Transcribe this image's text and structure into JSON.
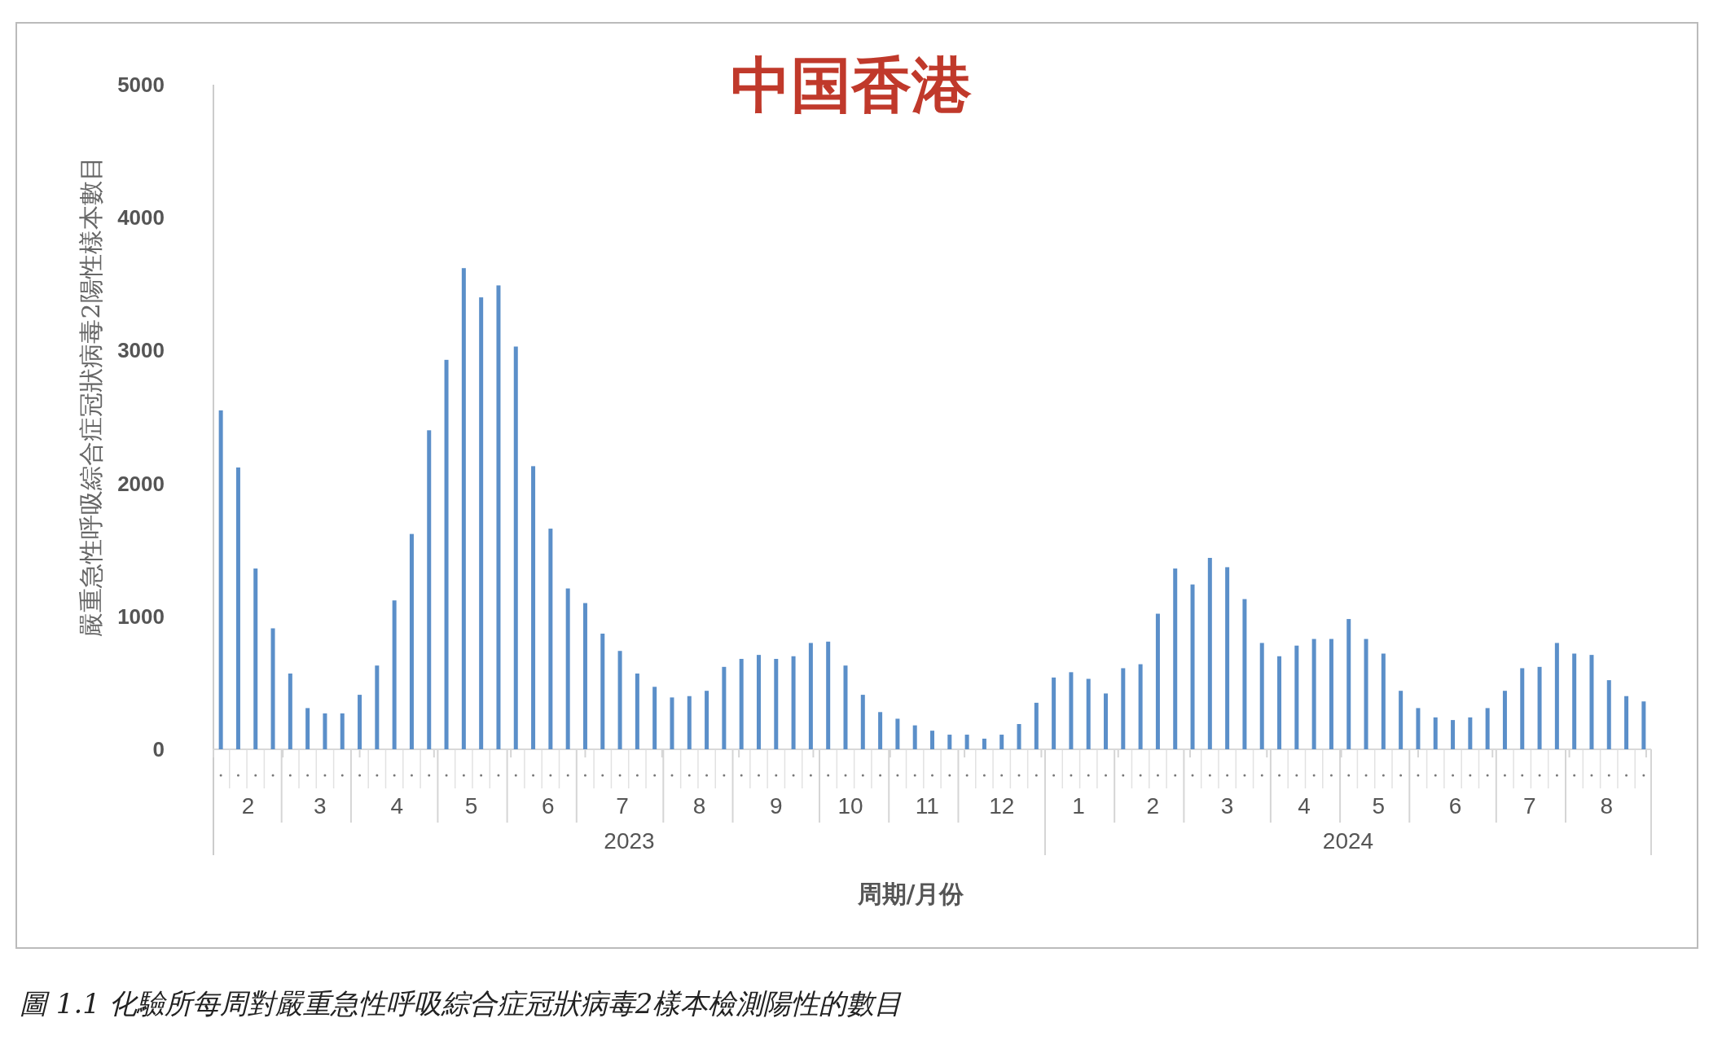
{
  "chart_data": {
    "type": "bar",
    "title": "中国香港",
    "ylabel": "嚴重急性呼吸綜合症冠狀病毒2陽性樣本數目",
    "xlabel": "周期/月份",
    "x": [
      "2023-02-04",
      "2023-02-11",
      "2023-02-18",
      "2023-02-25",
      "2023-03-04",
      "2023-03-11",
      "2023-03-18",
      "2023-03-25",
      "2023-04-01",
      "2023-04-08",
      "2023-04-15",
      "2023-04-22",
      "2023-04-29",
      "2023-05-06",
      "2023-05-13",
      "2023-05-20",
      "2023-05-27",
      "2023-06-03",
      "2023-06-10",
      "2023-06-17",
      "2023-06-24",
      "2023-07-01",
      "2023-07-08",
      "2023-07-15",
      "2023-07-22",
      "2023-07-29",
      "2023-08-05",
      "2023-08-12",
      "2023-08-19",
      "2023-08-26",
      "2023-09-02",
      "2023-09-09",
      "2023-09-16",
      "2023-09-23",
      "2023-09-30",
      "2023-10-07",
      "2023-10-14",
      "2023-10-21",
      "2023-10-28",
      "2023-11-04",
      "2023-11-11",
      "2023-11-18",
      "2023-11-25",
      "2023-12-02",
      "2023-12-09",
      "2023-12-16",
      "2023-12-23",
      "2023-12-30",
      "2024-01-06",
      "2024-01-13",
      "2024-01-20",
      "2024-01-27",
      "2024-02-03",
      "2024-02-10",
      "2024-02-17",
      "2024-02-24",
      "2024-03-02",
      "2024-03-09",
      "2024-03-16",
      "2024-03-23",
      "2024-03-30",
      "2024-04-06",
      "2024-04-13",
      "2024-04-20",
      "2024-04-27",
      "2024-05-04",
      "2024-05-11",
      "2024-05-18",
      "2024-05-25",
      "2024-06-01",
      "2024-06-08",
      "2024-06-15",
      "2024-06-22",
      "2024-06-29",
      "2024-07-06",
      "2024-07-13",
      "2024-07-20",
      "2024-07-27",
      "2024-08-03",
      "2024-08-10",
      "2024-08-17",
      "2024-08-24",
      "2024-08-31"
    ],
    "values": [
      2550,
      2120,
      1360,
      910,
      570,
      310,
      270,
      270,
      410,
      630,
      1120,
      1620,
      2400,
      2930,
      3620,
      3400,
      3490,
      3030,
      2130,
      1660,
      1210,
      1100,
      870,
      740,
      570,
      470,
      390,
      400,
      440,
      620,
      680,
      710,
      680,
      700,
      800,
      810,
      630,
      410,
      280,
      230,
      180,
      140,
      110,
      110,
      80,
      110,
      190,
      350,
      540,
      580,
      530,
      420,
      610,
      640,
      1020,
      1360,
      1240,
      1440,
      1370,
      1130,
      800,
      700,
      780,
      830,
      830,
      980,
      830,
      720,
      440,
      310,
      240,
      220,
      240,
      310,
      440,
      610,
      620,
      800,
      720,
      710,
      520,
      400,
      360
    ],
    "color": "#5b8fc9",
    "xlim": [
      "2023-02-01",
      "2024-09-03"
    ],
    "xticks": [
      {
        "value": "2023-02-01",
        "label": null
      },
      {
        "value": "2023-02-15",
        "label": "2"
      },
      {
        "value": "2023-03-01",
        "label": null
      },
      {
        "value": "2023-03-16",
        "label": "3"
      },
      {
        "value": "2023-04-01",
        "label": null
      },
      {
        "value": "2023-04-16",
        "label": "4"
      },
      {
        "value": "2023-05-01",
        "label": null
      },
      {
        "value": "2023-05-16",
        "label": "5"
      },
      {
        "value": "2023-06-01",
        "label": null
      },
      {
        "value": "2023-06-16",
        "label": "6"
      },
      {
        "value": "2023-07-01",
        "label": null
      },
      {
        "value": "2023-07-16",
        "label": "7"
      },
      {
        "value": "2023-08-01",
        "label": null
      },
      {
        "value": "2023-08-16",
        "label": "8"
      },
      {
        "value": "2023-09-01",
        "label": null
      },
      {
        "value": "2023-09-16",
        "label": "9"
      },
      {
        "value": "2023-10-01",
        "label": null
      },
      {
        "value": "2023-10-16",
        "label": "10"
      },
      {
        "value": "2023-11-01",
        "label": null
      },
      {
        "value": "2023-11-16",
        "label": "11"
      },
      {
        "value": "2023-12-01",
        "label": null
      },
      {
        "value": "2023-12-16",
        "label": "12"
      },
      {
        "value": "2024-01-01",
        "label": null
      },
      {
        "value": "2024-01-16",
        "label": "1"
      },
      {
        "value": "2024-02-01",
        "label": null
      },
      {
        "value": "2024-02-15",
        "label": "2"
      },
      {
        "value": "2024-03-01",
        "label": null
      },
      {
        "value": "2024-03-16",
        "label": "3"
      },
      {
        "value": "2024-04-01",
        "label": null
      },
      {
        "value": "2024-04-16",
        "label": "4"
      },
      {
        "value": "2024-05-01",
        "label": null
      },
      {
        "value": "2024-05-16",
        "label": "5"
      },
      {
        "value": "2024-06-01",
        "label": null
      },
      {
        "value": "2024-06-16",
        "label": "6"
      },
      {
        "value": "2024-07-01",
        "label": null
      },
      {
        "value": "2024-07-16",
        "label": "7"
      },
      {
        "value": "2024-08-01",
        "label": null
      },
      {
        "value": "2024-08-16",
        "label": "8"
      },
      {
        "value": "2024-09-01",
        "label": null
      }
    ],
    "ylim": [
      0,
      5000
    ],
    "yticks": [
      0,
      1000,
      2000,
      3000,
      4000,
      5000
    ],
    "grid": false,
    "annotations": [
      "2023",
      "2024",
      "圖 1.1 化驗所每周對嚴重急性呼吸綜合症冠狀病毒2樣本檢測陽性的數目"
    ]
  }
}
